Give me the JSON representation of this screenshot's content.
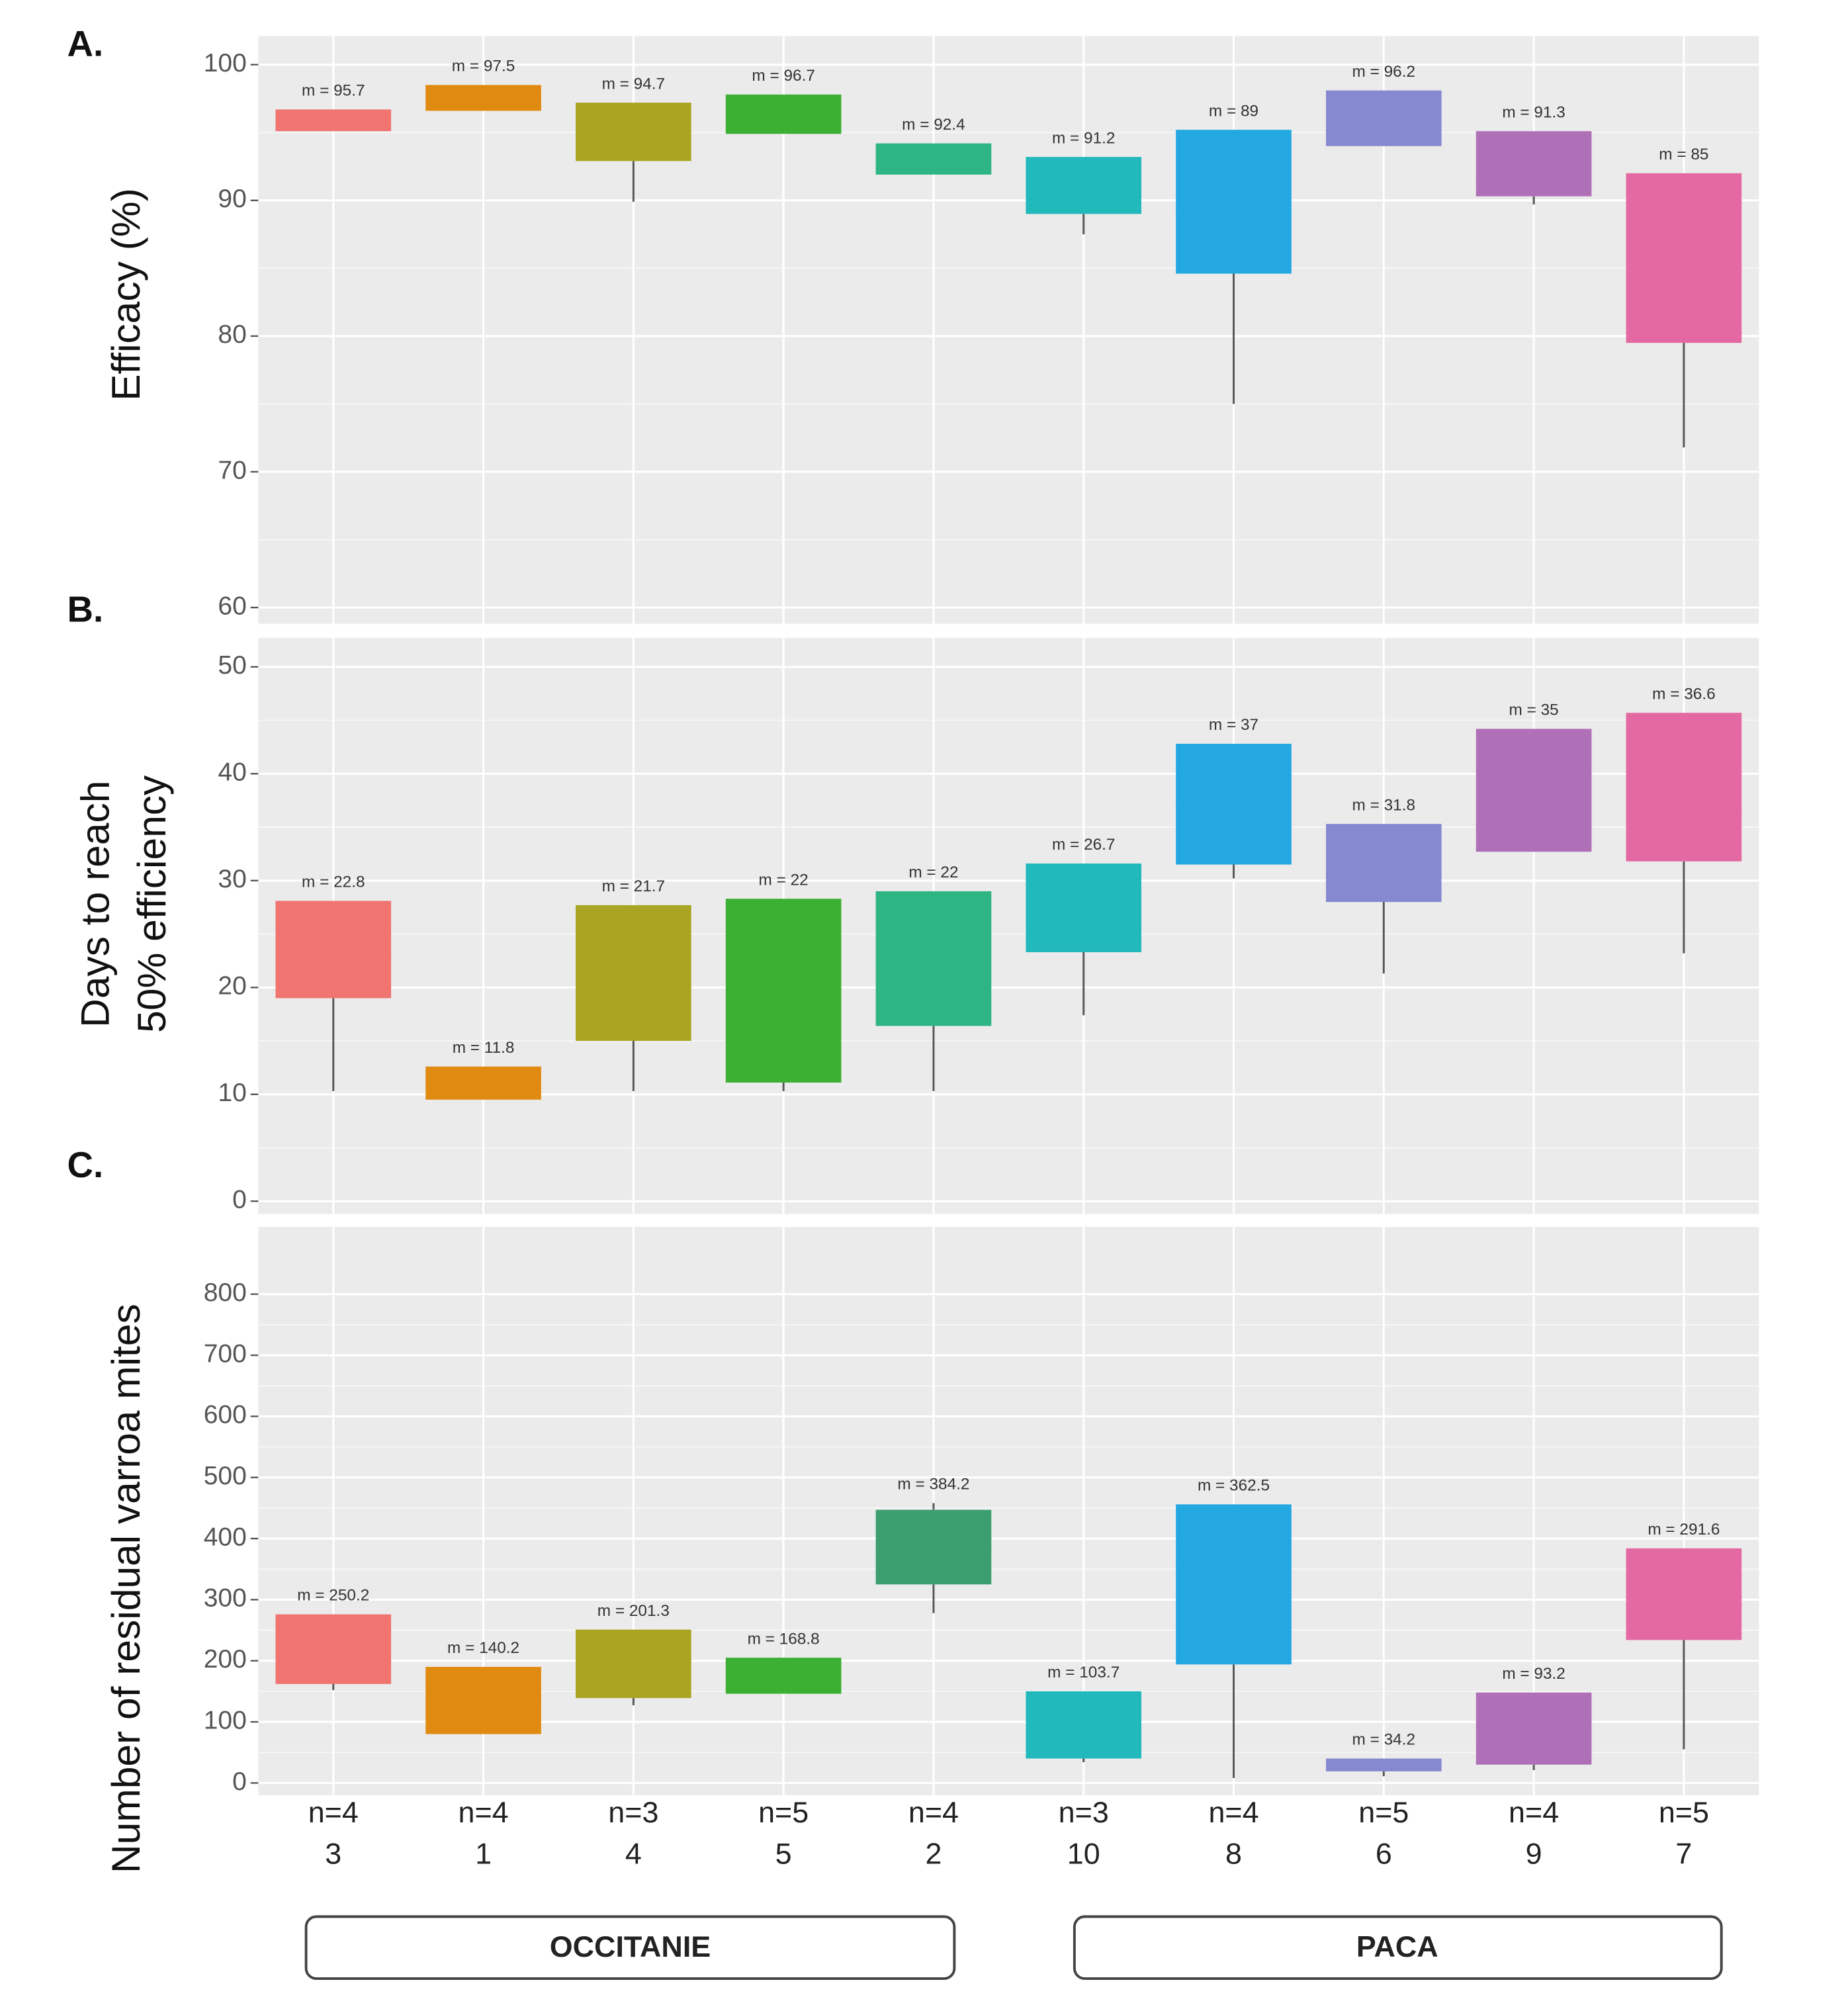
{
  "chart_data": [
    {
      "type": "box",
      "label": "A.",
      "ylabel": [
        "Efficacy (%)"
      ],
      "ylim": [
        58.8,
        102.1
      ],
      "yticks": [
        60,
        70,
        80,
        90,
        100
      ],
      "colors": [
        "#f07470",
        "#e08a12",
        "#a9a422",
        "#3cb033",
        "#2db583",
        "#22b9bd",
        "#23a8e1",
        "#8689d0",
        "#b070b8",
        "#e468a1"
      ],
      "q3": [
        96.7,
        98.5,
        97.2,
        97.8,
        94.2,
        93.2,
        95.2,
        98.1,
        95.1,
        92.0
      ],
      "q1": [
        95.1,
        96.6,
        92.9,
        94.9,
        91.9,
        89.0,
        84.6,
        94.0,
        90.3,
        79.5
      ],
      "whisker_low": [
        null,
        null,
        89.9,
        null,
        null,
        87.5,
        75.0,
        null,
        89.7,
        71.8
      ],
      "whisker_high": [
        null,
        null,
        null,
        null,
        null,
        null,
        null,
        null,
        null,
        null
      ],
      "values": [
        95.7,
        97.5,
        94.7,
        96.7,
        92.4,
        91.2,
        89,
        96.2,
        91.3,
        85
      ],
      "value_labels": [
        "m = 95.7",
        "m = 97.5",
        "m = 94.7",
        "m = 96.7",
        "m = 92.4",
        "m = 91.2",
        "m = 89",
        "m = 96.2",
        "m = 91.3",
        "m = 85"
      ]
    },
    {
      "type": "box",
      "label": "B.",
      "ylabel": [
        "Days to reach",
        "50% efficiency"
      ],
      "ylim": [
        -1.2,
        52.7
      ],
      "yticks": [
        0,
        10,
        20,
        30,
        40,
        50
      ],
      "colors": [
        "#f07470",
        "#e08a12",
        "#a9a422",
        "#3cb033",
        "#2db583",
        "#22b9bd",
        "#23a8e1",
        "#8689d0",
        "#b070b8",
        "#e468a1"
      ],
      "q3": [
        28.1,
        12.6,
        27.7,
        28.3,
        29.0,
        31.6,
        42.8,
        35.3,
        44.2,
        45.7
      ],
      "q1": [
        19.0,
        9.5,
        15.0,
        11.1,
        16.4,
        23.3,
        31.5,
        28.0,
        32.7,
        31.8
      ],
      "whisker_low": [
        10.3,
        null,
        10.3,
        10.3,
        10.3,
        17.4,
        30.2,
        21.3,
        null,
        23.2
      ],
      "whisker_high": [
        null,
        null,
        null,
        null,
        null,
        null,
        null,
        null,
        null,
        null
      ],
      "values": [
        22.8,
        11.8,
        21.7,
        22,
        22,
        26.7,
        37,
        31.8,
        35,
        36.6
      ],
      "value_labels": [
        "m = 22.8",
        "m = 11.8",
        "m = 21.7",
        "m = 22",
        "m = 22",
        "m = 26.7",
        "m = 37",
        "m = 31.8",
        "m = 35",
        "m = 36.6"
      ]
    },
    {
      "type": "box",
      "label": "C.",
      "ylabel": [
        "Number of residual varroa mites"
      ],
      "ylim": [
        -20,
        910
      ],
      "yticks": [
        0,
        100,
        200,
        300,
        400,
        500,
        600,
        700,
        800
      ],
      "colors": [
        "#f07470",
        "#e08a12",
        "#a9a422",
        "#3cb033",
        "#3a9e6e",
        "#22b9bd",
        "#23a8e1",
        "#8689d0",
        "#b070b8",
        "#e468a1"
      ],
      "q3": [
        276,
        190,
        251,
        205,
        447,
        150,
        456,
        40,
        148,
        384
      ],
      "q1": [
        162,
        80,
        139,
        146,
        325,
        40,
        194,
        19,
        30,
        234
      ],
      "whisker_low": [
        152,
        null,
        127,
        null,
        278,
        34,
        8,
        11,
        21,
        55
      ],
      "whisker_high": [
        null,
        null,
        null,
        null,
        458,
        null,
        null,
        null,
        null,
        null
      ],
      "values": [
        250.2,
        140.2,
        201.3,
        168.8,
        384.2,
        103.7,
        362.5,
        34.2,
        93.2,
        291.6
      ],
      "value_labels": [
        "m = 250.2",
        "m = 140.2",
        "m = 201.3",
        "m = 168.8",
        "m = 384.2",
        "m = 103.7",
        "m = 362.5",
        "m = 34.2",
        "m = 93.2",
        "m = 291.6"
      ],
      "n_labels": [
        "n=4",
        "n=4",
        "n=3",
        "n=5",
        "n=4",
        "n=3",
        "n=4",
        "n=5",
        "n=4",
        "n=5"
      ],
      "categories": [
        "3",
        "1",
        "4",
        "5",
        "2",
        "10",
        "8",
        "6",
        "9",
        "7"
      ]
    }
  ],
  "regions": [
    {
      "name": "OCCITANIE"
    },
    {
      "name": "PACA"
    }
  ]
}
